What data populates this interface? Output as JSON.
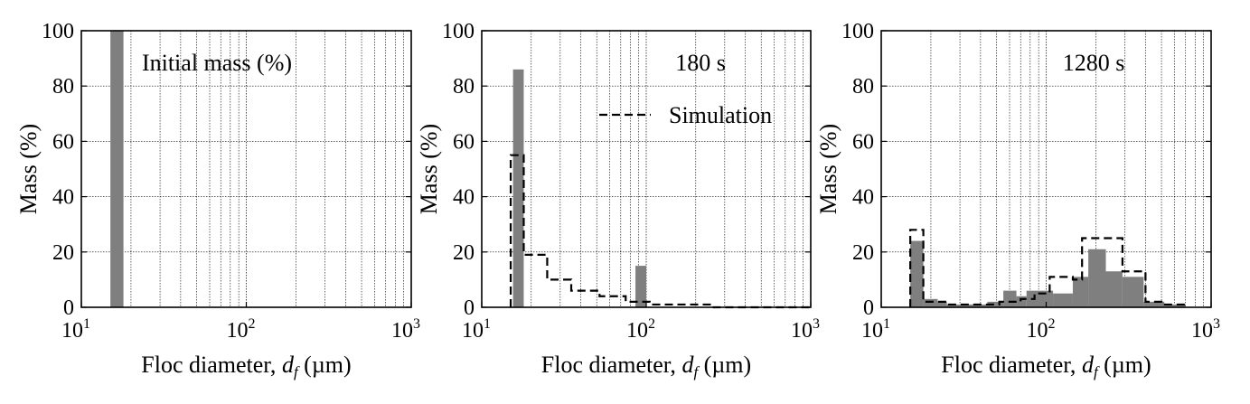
{
  "chart_data": [
    {
      "type": "bar",
      "xscale": "log",
      "xlim": [
        10,
        1000
      ],
      "ylim": [
        0,
        100
      ],
      "yticks": [
        0,
        20,
        40,
        60,
        80,
        100
      ],
      "xticks": [
        {
          "base": "10",
          "exp": "1"
        },
        {
          "base": "10",
          "exp": "2"
        },
        {
          "base": "10",
          "exp": "3"
        }
      ],
      "ylabel": "Mass (%)",
      "xlabel": {
        "text": "Floc diameter, ",
        "symbol": "d",
        "sub": "f",
        "unit": " (µm)"
      },
      "annotation": "Initial mass (%)",
      "legend": "",
      "bars": [
        {
          "x0": 15,
          "x1": 18,
          "value": 100
        }
      ],
      "simulation": []
    },
    {
      "type": "bar",
      "xscale": "log",
      "xlim": [
        10,
        1000
      ],
      "ylim": [
        0,
        100
      ],
      "yticks": [
        0,
        20,
        40,
        60,
        80,
        100
      ],
      "xticks": [
        {
          "base": "10",
          "exp": "1"
        },
        {
          "base": "10",
          "exp": "2"
        },
        {
          "base": "10",
          "exp": "3"
        }
      ],
      "ylabel": "Mass (%)",
      "xlabel": {
        "text": "Floc diameter, ",
        "symbol": "d",
        "sub": "f",
        "unit": " (µm)"
      },
      "annotation": "180 s",
      "legend": "Simulation",
      "bars": [
        {
          "x0": 15.5,
          "x1": 18,
          "value": 86
        },
        {
          "x0": 86,
          "x1": 100,
          "value": 15
        }
      ],
      "simulation": [
        {
          "x0": 15,
          "x1": 18,
          "value": 55
        },
        {
          "x0": 18,
          "x1": 25,
          "value": 19
        },
        {
          "x0": 25,
          "x1": 35,
          "value": 10
        },
        {
          "x0": 35,
          "x1": 52,
          "value": 6
        },
        {
          "x0": 52,
          "x1": 75,
          "value": 4
        },
        {
          "x0": 75,
          "x1": 105,
          "value": 2
        },
        {
          "x0": 105,
          "x1": 150,
          "value": 1
        },
        {
          "x0": 150,
          "x1": 250,
          "value": 1
        },
        {
          "x0": 250,
          "x1": 400,
          "value": 0
        },
        {
          "x0": 400,
          "x1": 1000,
          "value": 0
        }
      ]
    },
    {
      "type": "bar",
      "xscale": "log",
      "xlim": [
        10,
        1000
      ],
      "ylim": [
        0,
        100
      ],
      "yticks": [
        0,
        20,
        40,
        60,
        80,
        100
      ],
      "xticks": [
        {
          "base": "10",
          "exp": "1"
        },
        {
          "base": "10",
          "exp": "2"
        },
        {
          "base": "10",
          "exp": "3"
        }
      ],
      "ylabel": "Mass (%)",
      "xlabel": {
        "text": "Floc diameter, ",
        "symbol": "d",
        "sub": "f",
        "unit": " (µm)"
      },
      "annotation": "1280 s",
      "legend": "",
      "bars": [
        {
          "x0": 15,
          "x1": 18,
          "value": 24
        },
        {
          "x0": 18,
          "x1": 22,
          "value": 3
        },
        {
          "x0": 22,
          "x1": 25,
          "value": 2
        },
        {
          "x0": 25,
          "x1": 34,
          "value": 1
        },
        {
          "x0": 34,
          "x1": 44,
          "value": 1
        },
        {
          "x0": 44,
          "x1": 55,
          "value": 2
        },
        {
          "x0": 55,
          "x1": 66,
          "value": 6
        },
        {
          "x0": 66,
          "x1": 76,
          "value": 4
        },
        {
          "x0": 76,
          "x1": 90,
          "value": 6
        },
        {
          "x0": 90,
          "x1": 110,
          "value": 6
        },
        {
          "x0": 110,
          "x1": 145,
          "value": 5
        },
        {
          "x0": 145,
          "x1": 180,
          "value": 11
        },
        {
          "x0": 180,
          "x1": 230,
          "value": 21
        },
        {
          "x0": 230,
          "x1": 290,
          "value": 13
        },
        {
          "x0": 290,
          "x1": 390,
          "value": 11
        },
        {
          "x0": 390,
          "x1": 520,
          "value": 2
        },
        {
          "x0": 520,
          "x1": 700,
          "value": 1
        }
      ],
      "simulation": [
        {
          "x0": 15,
          "x1": 18,
          "value": 28
        },
        {
          "x0": 18,
          "x1": 25,
          "value": 2
        },
        {
          "x0": 25,
          "x1": 35,
          "value": 1
        },
        {
          "x0": 35,
          "x1": 52,
          "value": 1
        },
        {
          "x0": 52,
          "x1": 70,
          "value": 2
        },
        {
          "x0": 70,
          "x1": 85,
          "value": 3
        },
        {
          "x0": 85,
          "x1": 105,
          "value": 5
        },
        {
          "x0": 105,
          "x1": 145,
          "value": 11
        },
        {
          "x0": 145,
          "x1": 165,
          "value": 10
        },
        {
          "x0": 165,
          "x1": 290,
          "value": 25
        },
        {
          "x0": 290,
          "x1": 400,
          "value": 13
        },
        {
          "x0": 400,
          "x1": 500,
          "value": 2
        },
        {
          "x0": 500,
          "x1": 700,
          "value": 1
        }
      ]
    }
  ]
}
